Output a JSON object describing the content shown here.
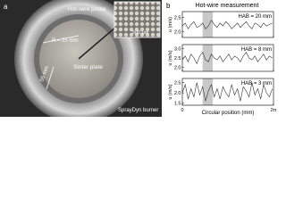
{
  "panel_a": {
    "label": "a",
    "probe": "Hot-wire probe",
    "scale": "500 µm",
    "radius": "R = 25 mm",
    "diameter": "55 mm",
    "plate": "Sinter plate",
    "burner": "SprayDyn burner"
  },
  "panel_b": {
    "label": "b",
    "title": "Hot-wire measurement"
  },
  "chart_data": [
    {
      "type": "line",
      "annotation": "HAB = 20 mm",
      "ylabel": "u (m/s)",
      "x": [
        0,
        0.2,
        0.4,
        0.6,
        0.8,
        1.0,
        1.2,
        1.4,
        1.6,
        1.8,
        2.0,
        2.2,
        2.4,
        2.6,
        2.8,
        3.0,
        3.2,
        3.4,
        3.6,
        3.8,
        4.0,
        4.2,
        4.4,
        4.6,
        4.8,
        5.0,
        5.2,
        5.4,
        5.6,
        5.8,
        6.0,
        6.2
      ],
      "series": [
        {
          "color": "#333333",
          "values": [
            2.2,
            2.3,
            2.1,
            2.25,
            2.35,
            2.15,
            2.2,
            2.3,
            2.1,
            2.2,
            2.4,
            2.25,
            2.15,
            2.3,
            2.2,
            2.35,
            2.25,
            2.1,
            2.2,
            2.3,
            2.15,
            2.25,
            2.35,
            2.2,
            2.1,
            2.3,
            2.25,
            2.15,
            2.3,
            2.2,
            2.25,
            2.3
          ]
        }
      ],
      "xlim": [
        0,
        6.2832
      ],
      "xticks": [
        0,
        {
          "value": 6.2832,
          "label": "2π"
        }
      ],
      "ylim": [
        1.8,
        2.7
      ],
      "yticks": [
        {
          "value": 2,
          "label": "2.0"
        },
        2.5
      ],
      "highlight": [
        1.4,
        2.1
      ]
    },
    {
      "type": "line",
      "annotation": "HAB = 8 mm",
      "ylabel": "u (m/s)",
      "x": [
        0,
        0.2,
        0.4,
        0.6,
        0.8,
        1.0,
        1.2,
        1.4,
        1.6,
        1.8,
        2.0,
        2.2,
        2.4,
        2.6,
        2.8,
        3.0,
        3.2,
        3.4,
        3.6,
        3.8,
        4.0,
        4.2,
        4.4,
        4.6,
        4.8,
        5.0,
        5.2,
        5.4,
        5.6,
        5.8,
        6.0,
        6.2
      ],
      "series": [
        {
          "color": "#333333",
          "values": [
            2.4,
            2.6,
            2.3,
            2.7,
            2.5,
            2.2,
            2.6,
            2.8,
            2.4,
            2.3,
            2.7,
            2.5,
            2.4,
            2.6,
            2.3,
            2.5,
            2.7,
            2.4,
            2.6,
            2.5,
            2.3,
            2.6,
            2.8,
            2.5,
            2.4,
            2.6,
            2.3,
            2.5,
            2.7,
            2.4,
            2.6,
            2.5
          ]
        }
      ],
      "xlim": [
        0,
        6.2832
      ],
      "xticks": [
        0,
        {
          "value": 6.2832,
          "label": "2π"
        }
      ],
      "ylim": [
        1.8,
        3.2
      ],
      "yticks": [
        {
          "value": 2,
          "label": "2.0"
        },
        2.5,
        {
          "value": 3,
          "label": "3.0"
        }
      ],
      "highlight": [
        1.4,
        2.1
      ]
    },
    {
      "type": "line",
      "annotation": "HAB = 3 mm",
      "ylabel": "u (m/s)",
      "xlabel": "Circular position (mm)",
      "x": [
        0,
        0.2,
        0.4,
        0.6,
        0.8,
        1.0,
        1.2,
        1.4,
        1.6,
        1.8,
        2.0,
        2.2,
        2.4,
        2.6,
        2.8,
        3.0,
        3.2,
        3.4,
        3.6,
        3.8,
        4.0,
        4.2,
        4.4,
        4.6,
        4.8,
        5.0,
        5.2,
        5.4,
        5.6,
        5.8,
        6.0,
        6.2
      ],
      "series": [
        {
          "color": "#333333",
          "values": [
            2.0,
            2.4,
            1.7,
            2.2,
            1.8,
            2.5,
            1.9,
            2.3,
            1.6,
            2.1,
            2.4,
            1.8,
            2.2,
            1.7,
            2.3,
            2.0,
            1.8,
            2.4,
            1.9,
            2.2,
            1.6,
            2.3,
            2.1,
            1.8,
            2.5,
            1.9,
            2.2,
            1.7,
            2.4,
            2.0,
            1.8,
            2.2
          ]
        }
      ],
      "xlim": [
        0,
        6.2832
      ],
      "xticks": [
        0,
        {
          "value": 6.2832,
          "label": "2π"
        }
      ],
      "ylim": [
        1.4,
        2.7
      ],
      "yticks": [
        1.5,
        {
          "value": 2,
          "label": "2.0"
        },
        2.5
      ],
      "highlight": [
        1.4,
        2.1
      ]
    }
  ]
}
